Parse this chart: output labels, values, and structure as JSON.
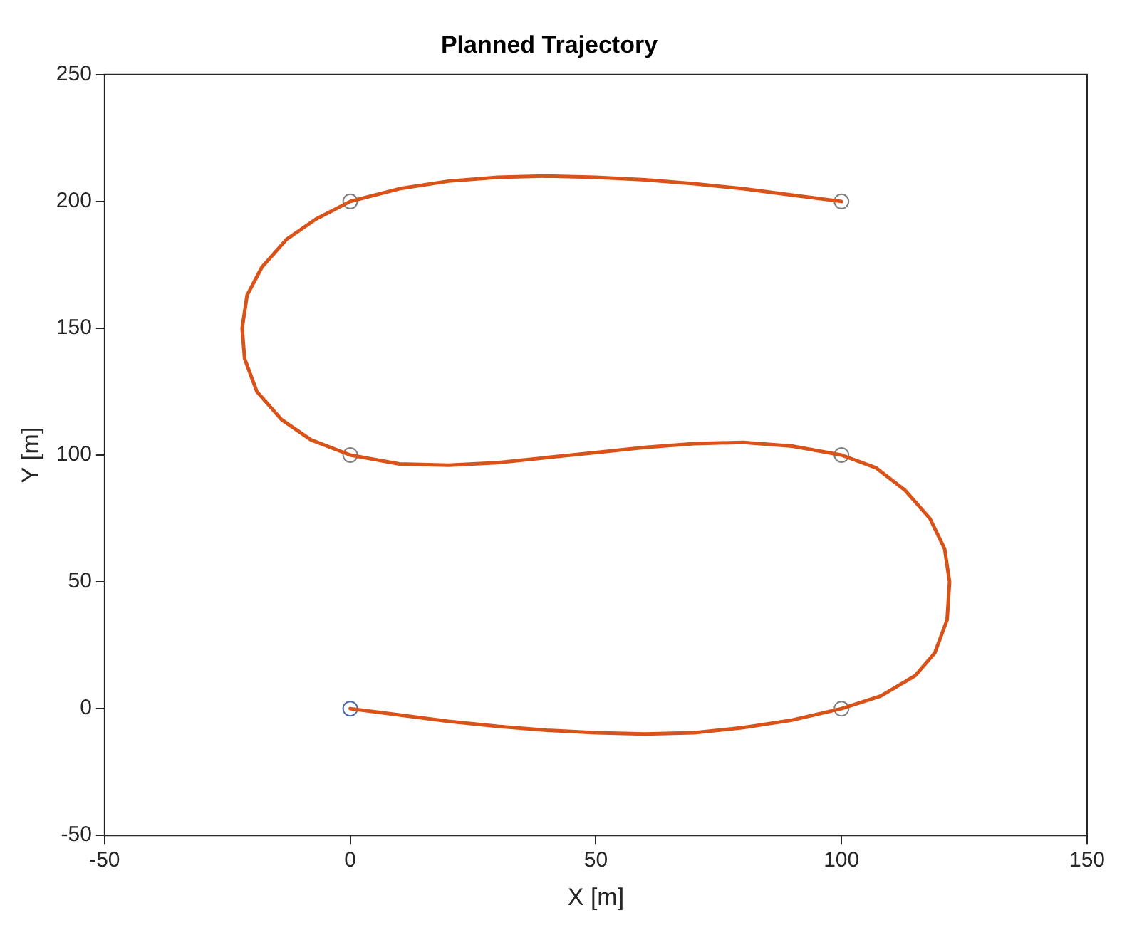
{
  "chart_data": {
    "type": "line",
    "title": "Planned Trajectory",
    "xlabel": "X [m]",
    "ylabel": "Y [m]",
    "xlim": [
      -50,
      150
    ],
    "xticks": [
      -50,
      0,
      50,
      100,
      150
    ],
    "ylim": [
      -50,
      250
    ],
    "yticks": [
      -50,
      0,
      50,
      100,
      150,
      200,
      250
    ],
    "grid": false,
    "legend": false,
    "series": [
      {
        "type": "line",
        "color": "#d95319",
        "marker": "none",
        "x": [
          0,
          10,
          20,
          30,
          40,
          50,
          60,
          70,
          80,
          90,
          100,
          108,
          115,
          119,
          121.5,
          122,
          121,
          118,
          113,
          107,
          100,
          90,
          80,
          70,
          60,
          50,
          40,
          30,
          20,
          10,
          0,
          -8,
          -14,
          -19,
          -21.5,
          -22,
          -21,
          -18,
          -13,
          -7,
          0,
          10,
          20,
          30,
          40,
          50,
          60,
          70,
          80,
          90,
          100
        ],
        "values": [
          0,
          -2.5,
          -5,
          -7,
          -8.5,
          -9.5,
          -10,
          -9.5,
          -7.5,
          -4.5,
          0,
          5,
          13,
          22,
          35,
          50,
          63,
          75,
          86,
          95,
          100,
          103.5,
          105,
          104.5,
          103,
          101,
          99,
          97,
          96,
          96.5,
          100,
          106,
          114,
          125,
          138,
          150,
          163,
          174,
          185,
          193,
          200,
          205,
          208,
          209.5,
          210,
          209.5,
          208.5,
          207,
          205,
          202.5,
          200
        ]
      },
      {
        "type": "scatter",
        "marker": "circle",
        "colors": [
          "#4a6ab8",
          "#808080",
          "#808080",
          "#808080",
          "#808080",
          "#808080"
        ],
        "x": [
          0,
          100,
          100,
          0,
          0,
          100
        ],
        "values": [
          0,
          0,
          100,
          100,
          200,
          200
        ]
      }
    ]
  }
}
